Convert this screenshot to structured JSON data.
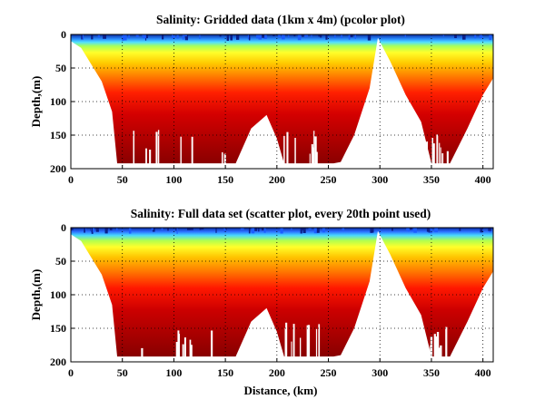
{
  "chart_data": [
    {
      "type": "heatmap",
      "title": "Salinity: Gridded data (1km x 4m) (pcolor plot)",
      "xlabel": "",
      "ylabel": "Depth,(m)",
      "xlim": [
        0,
        410
      ],
      "ylim": [
        200,
        0
      ],
      "y_reversed": true,
      "xticks": [
        0,
        50,
        100,
        150,
        200,
        250,
        300,
        350,
        400
      ],
      "yticks": [
        0,
        50,
        100,
        150,
        200
      ],
      "grid": "dotted",
      "colormap": "jet",
      "bottom_depth_profile": {
        "x": [
          0,
          10,
          30,
          40,
          45,
          60,
          80,
          100,
          130,
          150,
          160,
          175,
          190,
          200,
          207,
          215,
          240,
          255,
          262,
          275,
          290,
          298,
          310,
          325,
          340,
          350,
          360,
          368,
          385,
          400,
          410
        ],
        "depth": [
          10,
          20,
          70,
          115,
          192,
          192,
          192,
          192,
          192,
          192,
          192,
          140,
          120,
          155,
          192,
          192,
          192,
          192,
          190,
          150,
          80,
          5,
          40,
          90,
          130,
          192,
          192,
          192,
          140,
          90,
          65
        ]
      }
    },
    {
      "type": "scatter",
      "title": "Salinity: Full data set (scatter plot, every 20th point used)",
      "xlabel": "Distance, (km)",
      "ylabel": "Depth,(m)",
      "xlim": [
        0,
        410
      ],
      "ylim": [
        200,
        0
      ],
      "y_reversed": true,
      "xticks": [
        0,
        50,
        100,
        150,
        200,
        250,
        300,
        350,
        400
      ],
      "yticks": [
        0,
        50,
        100,
        150,
        200
      ],
      "grid": "dotted",
      "colormap": "jet",
      "bottom_depth_profile": {
        "x": [
          0,
          10,
          30,
          40,
          45,
          60,
          80,
          100,
          130,
          150,
          160,
          175,
          190,
          200,
          207,
          215,
          240,
          255,
          262,
          275,
          290,
          298,
          310,
          325,
          340,
          350,
          360,
          368,
          385,
          400,
          410
        ],
        "depth": [
          10,
          20,
          70,
          115,
          192,
          192,
          192,
          192,
          192,
          192,
          192,
          140,
          120,
          155,
          192,
          192,
          192,
          192,
          190,
          150,
          80,
          5,
          40,
          90,
          130,
          192,
          192,
          192,
          140,
          90,
          65
        ]
      }
    }
  ]
}
